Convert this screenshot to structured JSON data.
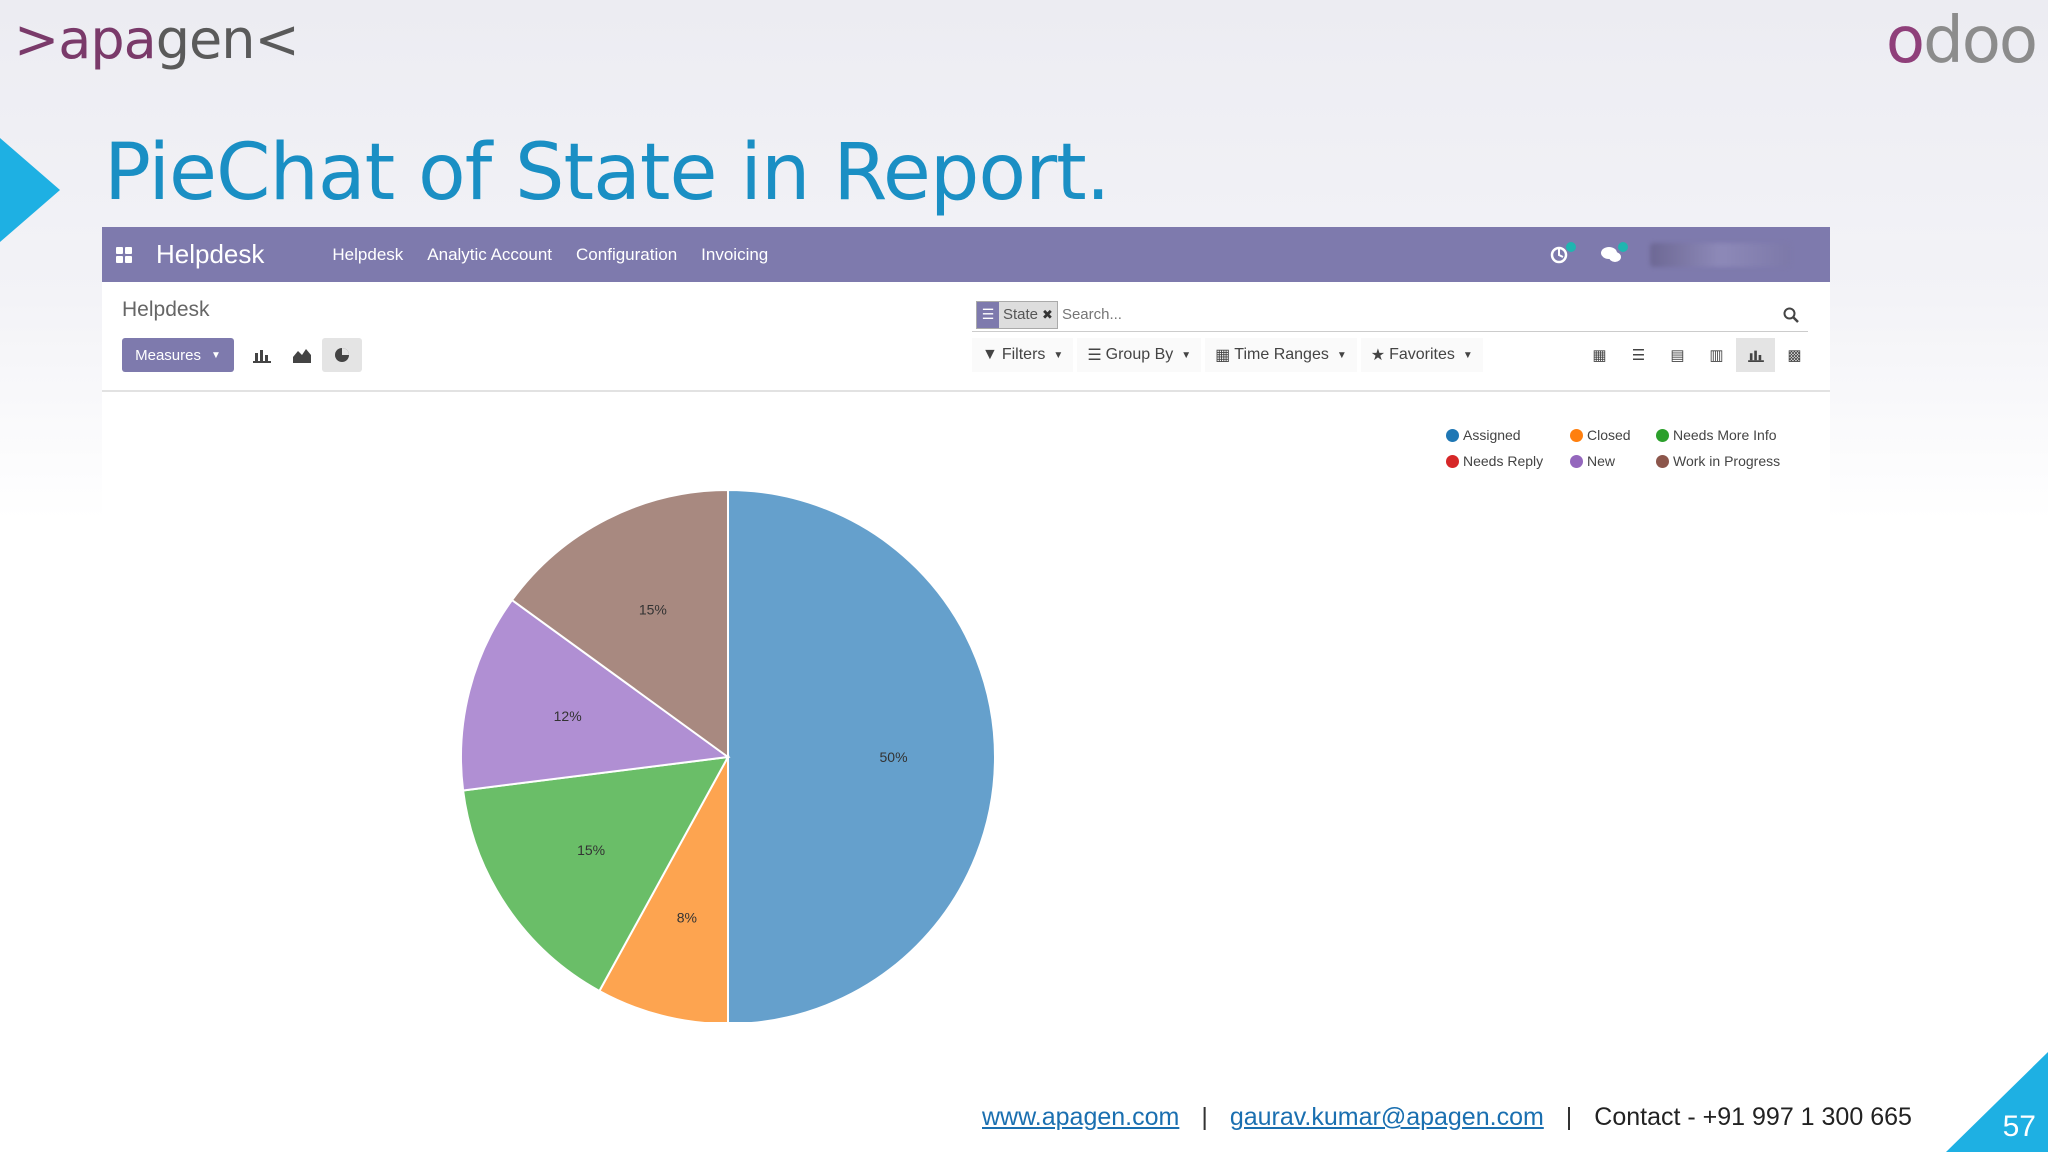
{
  "slide": {
    "brand_left_a": ">apa",
    "brand_left_b": "gen<",
    "brand_right_a": "o",
    "brand_right_b": "doo",
    "title": "PieChat of State in Report.",
    "page_number": "57",
    "accent_color": "#1eb0e3"
  },
  "navbar": {
    "brand": "Helpdesk",
    "menu": [
      "Helpdesk",
      "Analytic Account",
      "Configuration",
      "Invoicing"
    ],
    "icons": [
      "apps-grid-icon",
      "activity-icon",
      "chat-icon"
    ],
    "color": "#7e7aad"
  },
  "control_panel": {
    "breadcrumb": "Helpdesk",
    "measures_label": "Measures",
    "search_facet_value": "State",
    "search_placeholder": "Search...",
    "filters_label": "Filters",
    "group_by_label": "Group By",
    "time_ranges_label": "Time Ranges",
    "favorites_label": "Favorites"
  },
  "chart_data": {
    "type": "pie",
    "categories": [
      "Assigned",
      "Closed",
      "Needs More Info",
      "Needs Reply",
      "New",
      "Work in Progress"
    ],
    "values": [
      50,
      8,
      15,
      0,
      12,
      15
    ],
    "labels": [
      "50%",
      "8%",
      "15%",
      "",
      "12%",
      "15%"
    ],
    "colors": [
      "#1f77b4",
      "#ff7f0e",
      "#2ca02c",
      "#d62728",
      "#9467bd",
      "#8c564b"
    ],
    "slice_colors": [
      "#65a0cc",
      "#fda450",
      "#6abe68",
      "#e0585a",
      "#b08fd3",
      "#a88980"
    ],
    "legend_position": "top-right"
  },
  "footer": {
    "website": "www.apagen.com",
    "email": "gaurav.kumar@apagen.com",
    "separator": "|",
    "contact": "Contact - +91 997 1 300 665"
  }
}
